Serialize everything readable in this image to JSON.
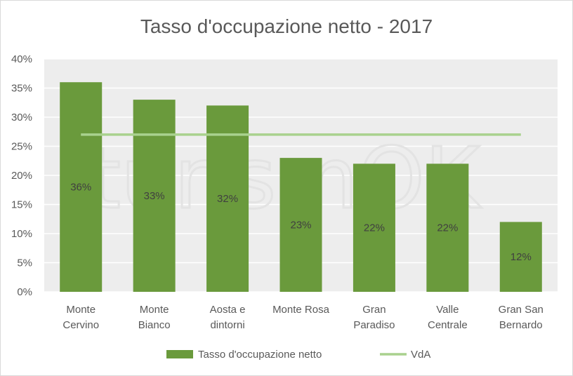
{
  "chart_data": {
    "type": "bar",
    "title": "Tasso d'occupazione netto - 2017",
    "categories": [
      [
        "Monte",
        "Cervino"
      ],
      [
        "Monte",
        "Bianco"
      ],
      [
        "Aosta e",
        "dintorni"
      ],
      [
        "Monte Rosa"
      ],
      [
        "Gran",
        "Paradiso"
      ],
      [
        "Valle",
        "Centrale"
      ],
      [
        "Gran San",
        "Bernardo"
      ]
    ],
    "series": [
      {
        "name": "Tasso d'occupazione netto",
        "type": "bar",
        "values": [
          36,
          33,
          32,
          23,
          22,
          22,
          12
        ],
        "color": "#6a9a3c"
      },
      {
        "name": "VdA",
        "type": "line",
        "values": [
          27,
          27,
          27,
          27,
          27,
          27,
          27
        ],
        "color": "#a9d18e"
      }
    ],
    "data_labels": [
      "36%",
      "33%",
      "32%",
      "23%",
      "22%",
      "22%",
      "12%"
    ],
    "yticks": [
      "0%",
      "5%",
      "10%",
      "15%",
      "20%",
      "25%",
      "30%",
      "35%",
      "40%"
    ],
    "ylim": [
      0,
      40
    ],
    "grid": true,
    "plot_background": "#ededed",
    "legend_position": "bottom",
    "watermark": "turismOK"
  }
}
